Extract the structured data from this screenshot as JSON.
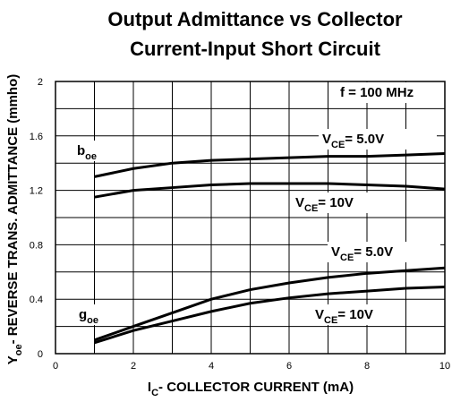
{
  "chart_data": {
    "type": "line",
    "title": [
      "Output Admittance vs Collector",
      "Current-Input Short Circuit"
    ],
    "x_label": {
      "main": "I",
      "sub": "C",
      "rest": "- COLLECTOR CURRENT (mA)"
    },
    "y_label": {
      "main": "Y",
      "sub": "oe",
      "rest": "- REVERSE TRANS. ADMITTANCE (mmho)"
    },
    "x": [
      1,
      2,
      3,
      4,
      5,
      6,
      7,
      8,
      9,
      10
    ],
    "series": [
      {
        "color": "#000000",
        "values": [
          1.3,
          1.36,
          1.4,
          1.42,
          1.43,
          1.44,
          1.45,
          1.45,
          1.46,
          1.47
        ]
      },
      {
        "color": "#000000",
        "values": [
          1.15,
          1.2,
          1.22,
          1.24,
          1.25,
          1.25,
          1.25,
          1.24,
          1.23,
          1.21
        ]
      },
      {
        "color": "#000000",
        "values": [
          0.1,
          0.2,
          0.3,
          0.4,
          0.47,
          0.52,
          0.56,
          0.59,
          0.61,
          0.63
        ]
      },
      {
        "color": "#000000",
        "values": [
          0.08,
          0.17,
          0.24,
          0.31,
          0.37,
          0.41,
          0.44,
          0.46,
          0.48,
          0.49
        ]
      }
    ],
    "annotations": [
      {
        "main": "f = 100 MHz"
      },
      {
        "main": "b",
        "sub": "oe"
      },
      {
        "main": "V",
        "sub": "CE",
        "rest": "= 5.0V"
      },
      {
        "main": "V",
        "sub": "CE",
        "rest": "= 10V"
      },
      {
        "main": "V",
        "sub": "CE",
        "rest": "= 5.0V"
      },
      {
        "main": "g",
        "sub": "oe"
      },
      {
        "main": "V",
        "sub": "CE",
        "rest": "= 10V"
      }
    ],
    "xlim": [
      0,
      10
    ],
    "xticks": [
      0,
      2,
      4,
      6,
      8,
      10
    ],
    "minor_xticks": [
      1,
      3,
      5,
      7,
      9
    ],
    "ylim": [
      0,
      2
    ],
    "yticks": [
      0,
      0.4,
      0.8,
      1.2,
      1.6,
      2
    ],
    "minor_yticks": [
      0.2,
      0.6,
      1.0,
      1.4,
      1.8
    ],
    "grid": true
  }
}
